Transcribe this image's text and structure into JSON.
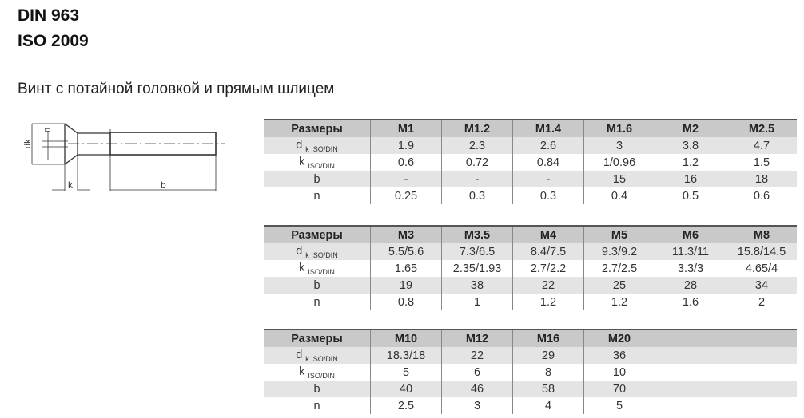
{
  "titles": {
    "line1": "DIN 963",
    "line2": "ISO 2009",
    "subtitle": "Винт с потайной головкой и прямым шлицем"
  },
  "diagram": {
    "dk": "dk",
    "n": "n",
    "k": "k",
    "b": "b"
  },
  "row_labels": {
    "size": "Размеры",
    "dk": "d",
    "dk_sub": "k ISO/DIN",
    "k": "k",
    "k_sub": "ISO/DIN",
    "b": "b",
    "n": "n"
  },
  "tables": [
    {
      "sizes": [
        "M1",
        "M1.2",
        "M1.4",
        "M1.6",
        "M2",
        "M2.5"
      ],
      "dk": [
        "1.9",
        "2.3",
        "2.6",
        "3",
        "3.8",
        "4.7"
      ],
      "k": [
        "0.6",
        "0.72",
        "0.84",
        "1/0.96",
        "1.2",
        "1.5"
      ],
      "b": [
        "-",
        "-",
        "-",
        "15",
        "16",
        "18"
      ],
      "n": [
        "0.25",
        "0.3",
        "0.3",
        "0.4",
        "0.5",
        "0.6"
      ]
    },
    {
      "sizes": [
        "M3",
        "M3.5",
        "M4",
        "M5",
        "M6",
        "M8"
      ],
      "dk": [
        "5.5/5.6",
        "7.3/6.5",
        "8.4/7.5",
        "9.3/9.2",
        "11.3/11",
        "15.8/14.5"
      ],
      "k": [
        "1.65",
        "2.35/1.93",
        "2.7/2.2",
        "2.7/2.5",
        "3.3/3",
        "4.65/4"
      ],
      "b": [
        "19",
        "38",
        "22",
        "25",
        "28",
        "34"
      ],
      "n": [
        "0.8",
        "1",
        "1.2",
        "1.2",
        "1.6",
        "2"
      ]
    },
    {
      "sizes": [
        "M10",
        "M12",
        "M16",
        "M20",
        "",
        ""
      ],
      "dk": [
        "18.3/18",
        "22",
        "29",
        "36",
        "",
        ""
      ],
      "k": [
        "5",
        "6",
        "8",
        "10",
        "",
        ""
      ],
      "b": [
        "40",
        "46",
        "58",
        "70",
        "",
        ""
      ],
      "n": [
        "2.5",
        "3",
        "4",
        "5",
        "",
        ""
      ]
    }
  ]
}
